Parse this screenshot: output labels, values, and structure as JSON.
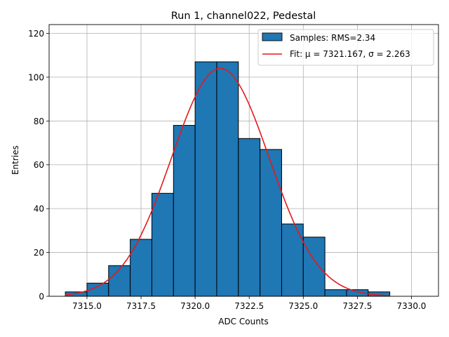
{
  "chart_data": {
    "type": "bar",
    "title": "Run 1, channel022, Pedestal",
    "xlabel": "ADC Counts",
    "ylabel": "Entries",
    "xlim": [
      7313.25,
      7331.25
    ],
    "ylim": [
      0,
      124
    ],
    "xticks": [
      7315.0,
      7317.5,
      7320.0,
      7322.5,
      7325.0,
      7327.5,
      7330.0
    ],
    "xtick_labels": [
      "7315.0",
      "7317.5",
      "7320.0",
      "7322.5",
      "7325.0",
      "7327.5",
      "7330.0"
    ],
    "yticks": [
      0,
      20,
      40,
      60,
      80,
      100,
      120
    ],
    "ytick_labels": [
      "0",
      "20",
      "40",
      "60",
      "80",
      "100",
      "120"
    ],
    "grid": true,
    "legend_position": "top-right",
    "bin_edges": [
      7314.0,
      7315.0,
      7316.0,
      7317.0,
      7318.0,
      7319.0,
      7320.0,
      7321.0,
      7322.0,
      7323.0,
      7324.0,
      7325.0,
      7326.0,
      7327.0,
      7328.0,
      7329.0
    ],
    "values": [
      2,
      6,
      14,
      26,
      47,
      78,
      107,
      107,
      72,
      67,
      33,
      27,
      3,
      3,
      2
    ],
    "series": [
      {
        "name": "Samples: RMS=2.34",
        "kind": "histogram",
        "color": "#1f77b4",
        "edgecolor": "#000000"
      },
      {
        "name": "Fit: μ = 7321.167, σ = 2.263",
        "kind": "gaussian-fit",
        "color": "#e41a1c",
        "mu": 7321.167,
        "sigma": 2.263,
        "amplitude": 104,
        "x_range": [
          7314.0,
          7329.0
        ]
      }
    ]
  }
}
